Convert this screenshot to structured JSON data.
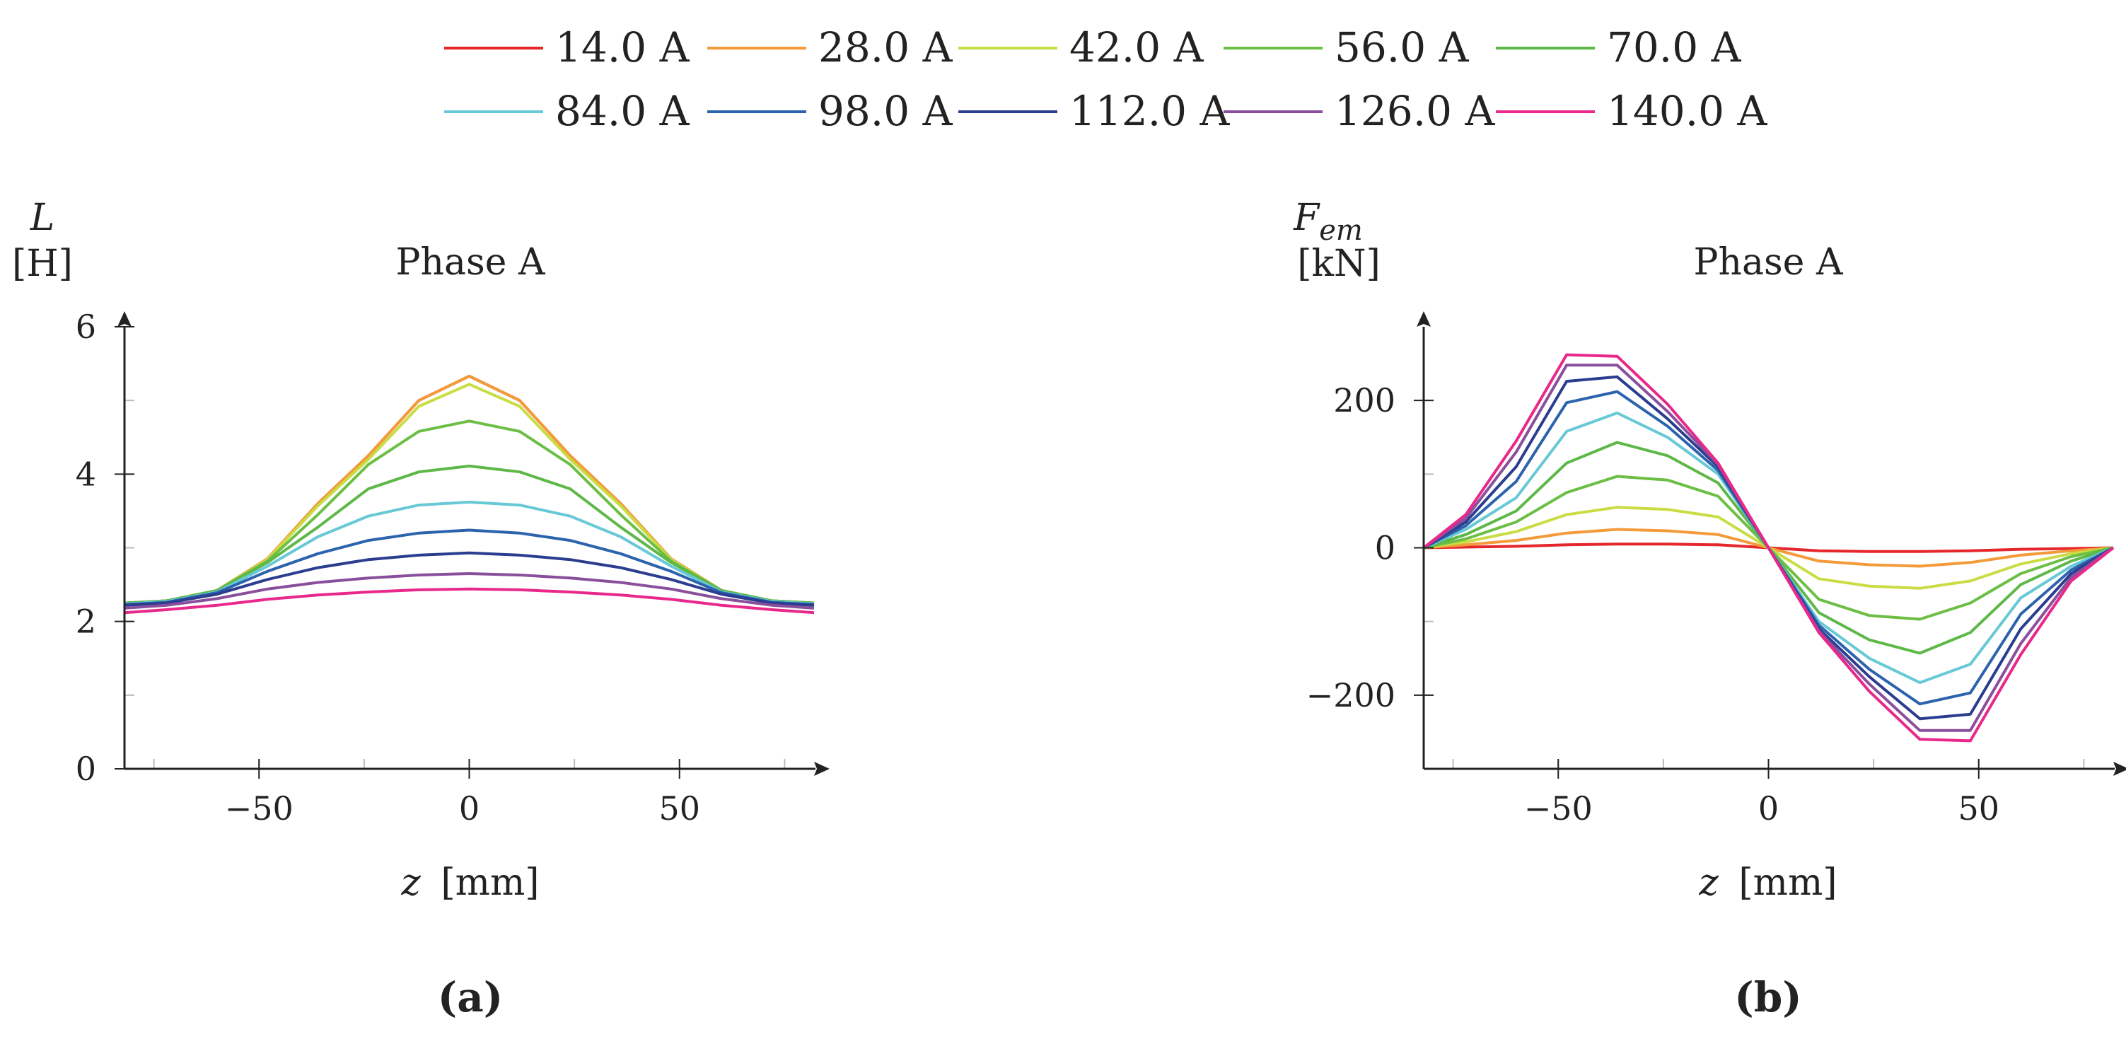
{
  "legend": [
    {
      "label": "14.0 A",
      "color": "#e5262b"
    },
    {
      "label": "28.0 A",
      "color": "#f39a3a"
    },
    {
      "label": "42.0 A",
      "color": "#c9dd43"
    },
    {
      "label": "56.0 A",
      "color": "#6cbe45"
    },
    {
      "label": "70.0 A",
      "color": "#5db848"
    },
    {
      "label": "84.0 A",
      "color": "#67c9d6"
    },
    {
      "label": "98.0 A",
      "color": "#2c63ad"
    },
    {
      "label": "112.0 A",
      "color": "#2b3d8f"
    },
    {
      "label": "126.0 A",
      "color": "#8a4f9c"
    },
    {
      "label": "140.0 A",
      "color": "#e8288a"
    }
  ],
  "chart_data": [
    {
      "type": "line",
      "title": "Phase A",
      "panel_label": "(a)",
      "ylabel_symbol": "L",
      "ylabel_unit": "[H]",
      "xlabel_var": "z",
      "xlabel_unit": "[mm]",
      "xlim": [
        -82,
        82
      ],
      "ylim": [
        0,
        6
      ],
      "xticks": [
        -50,
        0,
        50
      ],
      "xtick_labels": [
        "−50",
        "0",
        "50"
      ],
      "yticks": [
        0,
        2,
        4,
        6
      ],
      "ytick_labels": [
        "0",
        "2",
        "4",
        "6"
      ],
      "x": [
        -82,
        -72,
        -60,
        -48,
        -36,
        -24,
        -12,
        0,
        12,
        24,
        36,
        48,
        60,
        72,
        82
      ],
      "series": [
        {
          "name": "14.0 A",
          "values": [
            2.25,
            2.28,
            2.42,
            2.85,
            3.6,
            4.25,
            5.0,
            5.33,
            5.0,
            4.25,
            3.6,
            2.85,
            2.42,
            2.28,
            2.25
          ]
        },
        {
          "name": "28.0 A",
          "values": [
            2.25,
            2.28,
            2.42,
            2.85,
            3.6,
            4.25,
            5.0,
            5.33,
            5.0,
            4.25,
            3.6,
            2.85,
            2.42,
            2.28,
            2.25
          ]
        },
        {
          "name": "42.0 A",
          "values": [
            2.25,
            2.28,
            2.42,
            2.84,
            3.57,
            4.2,
            4.92,
            5.22,
            4.92,
            4.2,
            3.57,
            2.84,
            2.42,
            2.28,
            2.25
          ]
        },
        {
          "name": "56.0 A",
          "values": [
            2.25,
            2.28,
            2.42,
            2.82,
            3.45,
            4.13,
            4.58,
            4.72,
            4.58,
            4.13,
            3.45,
            2.82,
            2.42,
            2.28,
            2.25
          ]
        },
        {
          "name": "70.0 A",
          "values": [
            2.25,
            2.28,
            2.42,
            2.8,
            3.28,
            3.8,
            4.03,
            4.11,
            4.03,
            3.8,
            3.28,
            2.8,
            2.42,
            2.28,
            2.25
          ]
        },
        {
          "name": "84.0 A",
          "values": [
            2.24,
            2.27,
            2.4,
            2.75,
            3.15,
            3.43,
            3.58,
            3.62,
            3.58,
            3.43,
            3.15,
            2.75,
            2.4,
            2.27,
            2.24
          ]
        },
        {
          "name": "98.0 A",
          "values": [
            2.23,
            2.26,
            2.39,
            2.68,
            2.92,
            3.1,
            3.2,
            3.24,
            3.2,
            3.1,
            2.92,
            2.68,
            2.39,
            2.26,
            2.23
          ]
        },
        {
          "name": "112.0 A",
          "values": [
            2.22,
            2.25,
            2.37,
            2.57,
            2.73,
            2.84,
            2.9,
            2.93,
            2.9,
            2.84,
            2.73,
            2.57,
            2.37,
            2.25,
            2.22
          ]
        },
        {
          "name": "126.0 A",
          "values": [
            2.18,
            2.22,
            2.31,
            2.44,
            2.53,
            2.59,
            2.63,
            2.65,
            2.63,
            2.59,
            2.53,
            2.44,
            2.31,
            2.22,
            2.18
          ]
        },
        {
          "name": "140.0 A",
          "values": [
            2.12,
            2.16,
            2.22,
            2.3,
            2.36,
            2.4,
            2.43,
            2.44,
            2.43,
            2.4,
            2.36,
            2.3,
            2.22,
            2.16,
            2.12
          ]
        }
      ]
    },
    {
      "type": "line",
      "title": "Phase A",
      "panel_label": "(b)",
      "ylabel_symbol": "F",
      "ylabel_subscript": "em",
      "ylabel_unit": "[kN]",
      "xlabel_var": "z",
      "xlabel_unit": "[mm]",
      "xlim": [
        -82,
        82
      ],
      "ylim": [
        -300,
        300
      ],
      "xticks": [
        -50,
        0,
        50
      ],
      "xtick_labels": [
        "−50",
        "0",
        "50"
      ],
      "yticks": [
        -200,
        0,
        200
      ],
      "ytick_labels": [
        "−200",
        "0",
        "200"
      ],
      "x": [
        -82,
        -72,
        -60,
        -48,
        -36,
        -24,
        -12,
        0,
        12,
        24,
        36,
        48,
        60,
        72,
        82
      ],
      "series": [
        {
          "name": "14.0 A",
          "values": [
            0,
            1,
            2,
            4,
            5,
            5,
            4,
            0,
            -4,
            -5,
            -5,
            -4,
            -2,
            -1,
            0
          ]
        },
        {
          "name": "28.0 A",
          "values": [
            0,
            4,
            10,
            20,
            25,
            23,
            18,
            0,
            -18,
            -23,
            -25,
            -20,
            -10,
            -4,
            0
          ]
        },
        {
          "name": "42.0 A",
          "values": [
            0,
            8,
            22,
            45,
            55,
            52,
            42,
            0,
            -42,
            -52,
            -55,
            -45,
            -22,
            -8,
            0
          ]
        },
        {
          "name": "56.0 A",
          "values": [
            0,
            12,
            35,
            75,
            97,
            92,
            70,
            0,
            -70,
            -92,
            -97,
            -75,
            -35,
            -12,
            0
          ]
        },
        {
          "name": "70.0 A",
          "values": [
            0,
            18,
            50,
            115,
            143,
            125,
            88,
            0,
            -88,
            -125,
            -143,
            -115,
            -50,
            -18,
            0
          ]
        },
        {
          "name": "84.0 A",
          "values": [
            0,
            25,
            68,
            158,
            183,
            150,
            100,
            0,
            -100,
            -150,
            -183,
            -158,
            -68,
            -25,
            0
          ]
        },
        {
          "name": "98.0 A",
          "values": [
            0,
            30,
            90,
            197,
            212,
            165,
            105,
            0,
            -105,
            -165,
            -212,
            -197,
            -90,
            -30,
            0
          ]
        },
        {
          "name": "112.0 A",
          "values": [
            0,
            35,
            110,
            226,
            232,
            175,
            110,
            0,
            -110,
            -175,
            -232,
            -226,
            -110,
            -35,
            0
          ]
        },
        {
          "name": "126.0 A",
          "values": [
            0,
            40,
            130,
            248,
            248,
            185,
            113,
            0,
            -113,
            -185,
            -248,
            -248,
            -130,
            -40,
            0
          ]
        },
        {
          "name": "140.0 A",
          "values": [
            0,
            45,
            145,
            262,
            260,
            195,
            115,
            0,
            -115,
            -195,
            -260,
            -262,
            -145,
            -45,
            0
          ]
        }
      ]
    }
  ]
}
